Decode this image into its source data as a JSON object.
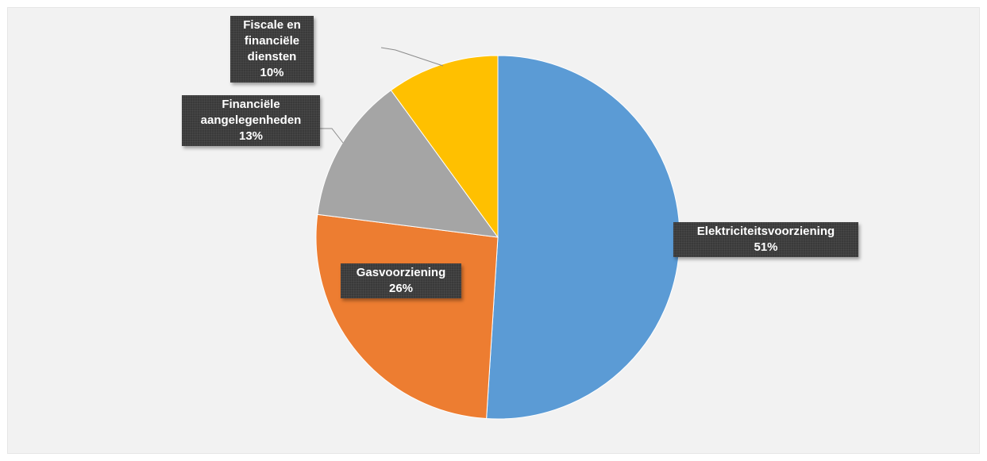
{
  "chart_data": {
    "type": "pie",
    "title": "",
    "start_angle_deg": 0,
    "direction": "clockwise",
    "legend": "none",
    "slices": [
      {
        "category": "Elektriciteitsvoorziening",
        "value": 51,
        "value_label": "51%",
        "label_text": "Elektriciteitsvoorziening\n51%",
        "color": "#5b9bd5"
      },
      {
        "category": "Gasvoorziening",
        "value": 26,
        "value_label": "26%",
        "label_text": "Gasvoorziening\n26%",
        "color": "#ed7d31"
      },
      {
        "category": "Financiële aangelegenheden",
        "value": 13,
        "value_label": "13%",
        "label_text": "Financiële\naangelegenheden\n13%",
        "color": "#a5a5a5"
      },
      {
        "category": "Fiscale en financiële diensten",
        "value": 10,
        "value_label": "10%",
        "label_text": "Fiscale en\nfinanciële\ndiensten\n10%",
        "color": "#ffc000"
      }
    ]
  }
}
